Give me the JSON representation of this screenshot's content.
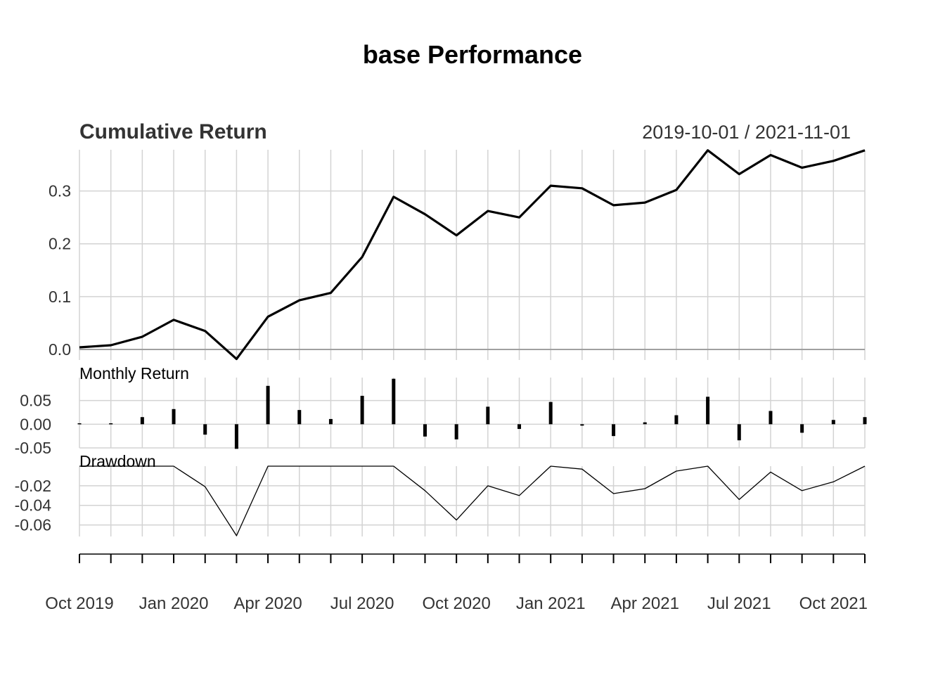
{
  "title": "base Performance",
  "date_range": "2019-10-01 / 2021-11-01",
  "x_tick_labels": [
    "Oct 2019",
    "Jan 2020",
    "Apr 2020",
    "Jul 2020",
    "Oct 2020",
    "Jan 2021",
    "Apr 2021",
    "Jul 2021",
    "Oct 2021"
  ],
  "colors": {
    "line": "#000000",
    "grid": "#d3d3d3",
    "text": "#333333",
    "zero_line": "#a0a0a0"
  },
  "chart_data": [
    {
      "type": "line",
      "title": "Cumulative Return",
      "x": [
        "2019-10",
        "2019-11",
        "2019-12",
        "2020-01",
        "2020-02",
        "2020-03",
        "2020-04",
        "2020-05",
        "2020-06",
        "2020-07",
        "2020-08",
        "2020-09",
        "2020-10",
        "2020-11",
        "2020-12",
        "2021-01",
        "2021-02",
        "2021-03",
        "2021-04",
        "2021-05",
        "2021-06",
        "2021-07",
        "2021-08",
        "2021-09",
        "2021-10",
        "2021-11"
      ],
      "values": [
        0.004,
        0.008,
        0.024,
        0.056,
        0.035,
        -0.018,
        0.062,
        0.093,
        0.107,
        0.175,
        0.289,
        0.256,
        0.216,
        0.262,
        0.25,
        0.31,
        0.305,
        0.273,
        0.278,
        0.302,
        0.377,
        0.332,
        0.368,
        0.344,
        0.357,
        0.377
      ],
      "y_ticks": [
        "0.3",
        "0.2",
        "0.1",
        "0.0"
      ],
      "y_tick_values": [
        0.3,
        0.2,
        0.1,
        0.0
      ],
      "ylim": [
        -0.02,
        0.38
      ],
      "grid": true
    },
    {
      "type": "bar",
      "title": "Monthly Return",
      "x": [
        "2019-10",
        "2019-11",
        "2019-12",
        "2020-01",
        "2020-02",
        "2020-03",
        "2020-04",
        "2020-05",
        "2020-06",
        "2020-07",
        "2020-08",
        "2020-09",
        "2020-10",
        "2020-11",
        "2020-12",
        "2021-01",
        "2021-02",
        "2021-03",
        "2021-04",
        "2021-05",
        "2021-06",
        "2021-07",
        "2021-08",
        "2021-09",
        "2021-10",
        "2021-11"
      ],
      "values": [
        0.002,
        0.002,
        0.015,
        0.032,
        -0.022,
        -0.052,
        0.081,
        0.03,
        0.011,
        0.06,
        0.096,
        -0.026,
        -0.032,
        0.037,
        -0.01,
        0.047,
        -0.003,
        -0.025,
        0.004,
        0.019,
        0.058,
        -0.034,
        0.028,
        -0.018,
        0.009,
        0.015
      ],
      "y_ticks": [
        "0.05",
        "0.00",
        "-0.05"
      ],
      "y_tick_values": [
        0.05,
        0.0,
        -0.05
      ],
      "ylim": [
        -0.05,
        0.1
      ],
      "grid": true
    },
    {
      "type": "line",
      "title": "Drawdown",
      "x": [
        "2019-10",
        "2019-11",
        "2019-12",
        "2020-01",
        "2020-02",
        "2020-03",
        "2020-04",
        "2020-05",
        "2020-06",
        "2020-07",
        "2020-08",
        "2020-09",
        "2020-10",
        "2020-11",
        "2020-12",
        "2021-01",
        "2021-02",
        "2021-03",
        "2021-04",
        "2021-05",
        "2021-06",
        "2021-07",
        "2021-08",
        "2021-09",
        "2021-10",
        "2021-11"
      ],
      "values": [
        0,
        0,
        0,
        0,
        -0.021,
        -0.071,
        0,
        0,
        0,
        0,
        0,
        -0.025,
        -0.055,
        -0.02,
        -0.03,
        0,
        -0.003,
        -0.028,
        -0.023,
        -0.005,
        0,
        -0.034,
        -0.006,
        -0.025,
        -0.016,
        0
      ],
      "y_ticks": [
        "-0.02",
        "-0.04",
        "-0.06"
      ],
      "y_tick_values": [
        -0.02,
        -0.04,
        -0.06
      ],
      "ylim": [
        -0.072,
        0.0
      ],
      "grid": true
    }
  ]
}
